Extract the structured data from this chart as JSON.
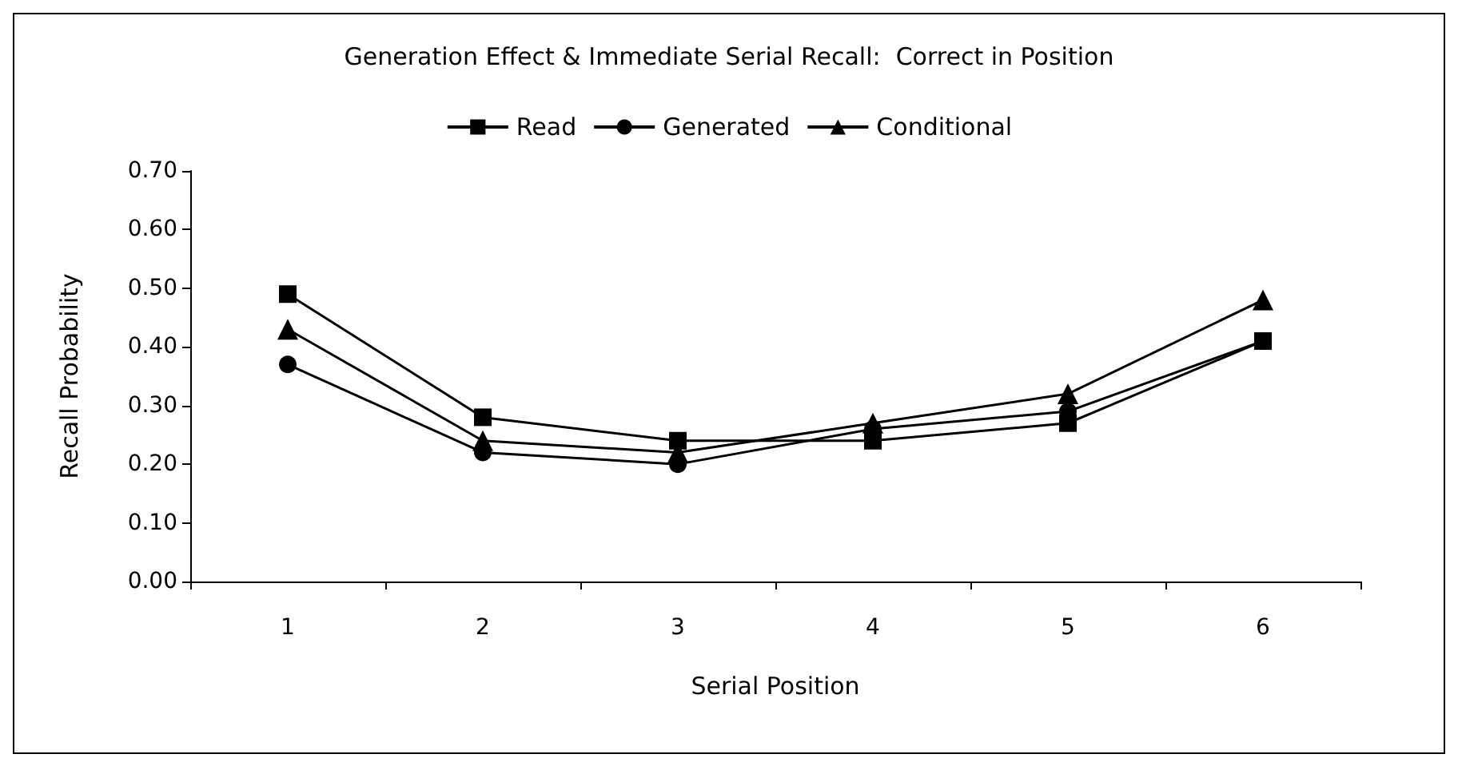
{
  "chart_data": {
    "type": "line",
    "title": "Generation Effect & Immediate Serial Recall:  Correct in Position",
    "xlabel": "Serial Position",
    "ylabel": "Recall Probability",
    "categories": [
      "1",
      "2",
      "3",
      "4",
      "5",
      "6"
    ],
    "series": [
      {
        "name": "Read",
        "color": "#000000",
        "marker": "square",
        "values": [
          0.49,
          0.28,
          0.24,
          0.24,
          0.27,
          0.41
        ]
      },
      {
        "name": "Generated",
        "color": "#000000",
        "marker": "circle",
        "values": [
          0.37,
          0.22,
          0.2,
          0.26,
          0.29,
          0.41
        ]
      },
      {
        "name": "Conditional",
        "color": "#000000",
        "marker": "triangle",
        "values": [
          0.43,
          0.24,
          0.22,
          0.27,
          0.32,
          0.48
        ]
      }
    ],
    "ylim": [
      0,
      0.7
    ],
    "yticks": [
      {
        "value": 0,
        "label": "0.00"
      },
      {
        "value": 0.1,
        "label": "0.10"
      },
      {
        "value": 0.2,
        "label": "0.20"
      },
      {
        "value": 0.3,
        "label": "0.30"
      },
      {
        "value": 0.4,
        "label": "0.40"
      },
      {
        "value": 0.5,
        "label": "0.50"
      },
      {
        "value": 0.6,
        "label": "0.60"
      },
      {
        "value": 0.7,
        "label": "0.70"
      }
    ],
    "grid": false,
    "legend": "top",
    "line_style": "solid"
  }
}
